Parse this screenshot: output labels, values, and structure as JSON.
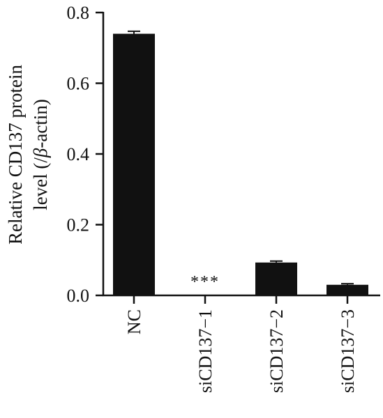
{
  "chart_data": {
    "type": "bar",
    "categories": [
      "NC",
      "siCD137−1",
      "siCD137−2",
      "siCD137−3"
    ],
    "values": [
      0.74,
      0.0,
      0.093,
      0.03
    ],
    "errors": [
      0.007,
      0.0,
      0.004,
      0.003
    ],
    "annotations": [
      "",
      "***",
      "",
      ""
    ],
    "ylabel_line1": "Relative CD137 protein",
    "ylabel_line2_pre": "level (/",
    "ylabel_line2_greek": "β",
    "ylabel_line2_post": "-actin)",
    "xlabel": "",
    "ylim": [
      0,
      0.8
    ],
    "yticks": [
      "0.0",
      "0.2",
      "0.4",
      "0.6",
      "0.8"
    ],
    "bar_color": "#111111",
    "grid": false,
    "legend": false
  }
}
